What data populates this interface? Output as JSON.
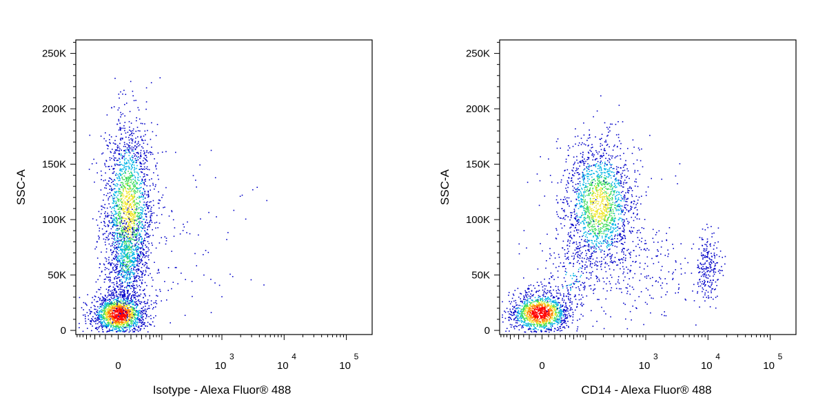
{
  "chart_data": [
    {
      "type": "scatter",
      "subtype": "flow-cytometry-pseudocolor-dot-plot",
      "xlabel": "Isotype - Alexa Fluor® 488",
      "ylabel": "SSC-A",
      "x_scale": "biexponential",
      "xlim": [
        -300,
        100000
      ],
      "ylim": [
        0,
        262144
      ],
      "y_ticks": [
        "0",
        "50K",
        "100K",
        "150K",
        "200K",
        "250K"
      ],
      "x_ticks": [
        {
          "base": "0",
          "exp": ""
        },
        {
          "base": "10",
          "exp": "3"
        },
        {
          "base": "10",
          "exp": "4"
        },
        {
          "base": "10",
          "exp": "5"
        }
      ],
      "populations": [
        {
          "x_center": 0,
          "y_center": 18000,
          "density": "high"
        },
        {
          "x_center": 60,
          "y_center": 110000,
          "density": "medium"
        }
      ]
    },
    {
      "type": "scatter",
      "subtype": "flow-cytometry-pseudocolor-dot-plot",
      "xlabel": "CD14 - Alexa Fluor® 488",
      "ylabel": "SSC-A",
      "x_scale": "biexponential",
      "xlim": [
        -300,
        100000
      ],
      "ylim": [
        0,
        262144
      ],
      "y_ticks": [
        "0",
        "50K",
        "100K",
        "150K",
        "200K",
        "250K"
      ],
      "x_ticks": [
        {
          "base": "0",
          "exp": ""
        },
        {
          "base": "10",
          "exp": "3"
        },
        {
          "base": "10",
          "exp": "4"
        },
        {
          "base": "10",
          "exp": "5"
        }
      ],
      "populations": [
        {
          "x_center": 0,
          "y_center": 18000,
          "density": "high"
        },
        {
          "x_center": 400,
          "y_center": 110000,
          "density": "medium"
        },
        {
          "x_center": 10000,
          "y_center": 70000,
          "density": "low"
        }
      ]
    }
  ],
  "colors": {
    "density_low": "#0000c8",
    "density_mid_low": "#00b4e6",
    "density_mid": "#3cdc5a",
    "density_mid_high": "#f0e628",
    "density_high": "#ff0000"
  }
}
